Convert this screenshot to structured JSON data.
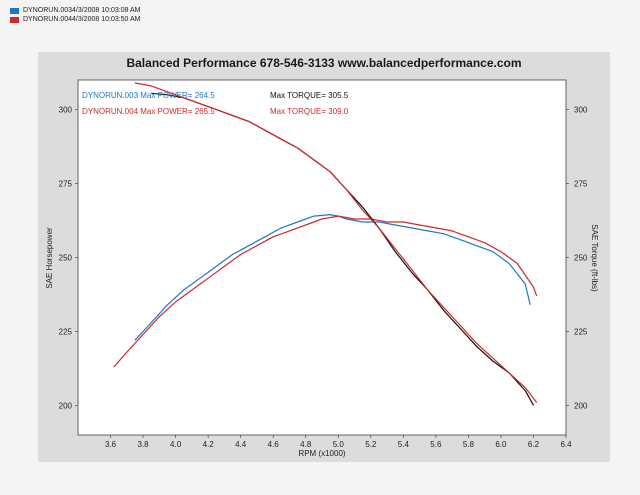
{
  "header_legend": [
    {
      "label": "DYNORUN.0034/3/2008 10:03:08 AM",
      "color": "#1f77c8"
    },
    {
      "label": "DYNORUN.0044/3/2008 10:03:50 AM",
      "color": "#d02a2a"
    }
  ],
  "chart_data": {
    "type": "line",
    "title": "Balanced Performance 678-546-3133 www.balancedperformance.com",
    "xlabel": "RPM (x1000)",
    "ylabel_left": "SAE Horsepower",
    "ylabel_right": "SAE Torque (ft-lbs)",
    "xlim": [
      3.4,
      6.4
    ],
    "ylim_left": [
      190,
      310
    ],
    "ylim_right": [
      190,
      310
    ],
    "x_ticks": [
      "3.6",
      "3.8",
      "4.0",
      "4.2",
      "4.4",
      "4.6",
      "4.8",
      "5.0",
      "5.2",
      "5.4",
      "5.6",
      "5.8",
      "6.0",
      "6.2",
      "6.4"
    ],
    "y_ticks_left": [
      "200",
      "225",
      "250",
      "275",
      "300"
    ],
    "y_ticks_right": [
      "200",
      "225",
      "250",
      "275",
      "300"
    ],
    "grid": false,
    "inner_legend": [
      {
        "text": "DYNORUN.003  Max POWER= 264.5",
        "color": "#1f77c8"
      },
      {
        "text": "Max TORQUE= 305.5",
        "color": "#111111"
      },
      {
        "text": "DYNORUN.004  Max POWER= 265.5",
        "color": "#d02a2a"
      },
      {
        "text": "Max TORQUE= 309.0",
        "color": "#d02a2a"
      }
    ],
    "series": [
      {
        "name": "DYNORUN.003 Power",
        "axis": "left",
        "color": "#1f77c8",
        "x": [
          3.75,
          3.85,
          3.95,
          4.05,
          4.15,
          4.25,
          4.35,
          4.45,
          4.55,
          4.65,
          4.75,
          4.85,
          4.95,
          5.0,
          5.05,
          5.15,
          5.25,
          5.35,
          5.45,
          5.55,
          5.65,
          5.75,
          5.85,
          5.95,
          6.05,
          6.15,
          6.18
        ],
        "y": [
          222,
          228,
          234,
          239,
          243,
          247,
          251,
          254,
          257,
          260,
          262,
          264,
          264.5,
          264,
          263,
          262,
          262,
          261,
          260,
          259,
          258,
          256,
          254,
          252,
          248,
          241,
          234
        ]
      },
      {
        "name": "DYNORUN.004 Power",
        "axis": "left",
        "color": "#d02a2a",
        "x": [
          3.62,
          3.7,
          3.8,
          3.9,
          4.0,
          4.1,
          4.2,
          4.3,
          4.4,
          4.5,
          4.6,
          4.7,
          4.8,
          4.9,
          5.0,
          5.1,
          5.2,
          5.3,
          5.4,
          5.5,
          5.6,
          5.7,
          5.8,
          5.9,
          6.0,
          6.1,
          6.2,
          6.22
        ],
        "y": [
          213,
          218,
          224,
          230,
          235,
          239,
          243,
          247,
          251,
          254,
          257,
          259,
          261,
          263,
          264,
          263,
          263,
          262,
          262,
          261,
          260,
          259,
          257,
          255,
          252,
          248,
          240,
          237
        ]
      },
      {
        "name": "DYNORUN.003 Torque",
        "axis": "right",
        "color": "#111111",
        "x": [
          3.85,
          3.95,
          4.05,
          4.15,
          4.25,
          4.35,
          4.45,
          4.55,
          4.65,
          4.75,
          4.85,
          4.95,
          5.05,
          5.15,
          5.25,
          5.35,
          5.45,
          5.55,
          5.65,
          5.75,
          5.85,
          5.95,
          6.05,
          6.15,
          6.2
        ],
        "y": [
          305.5,
          305,
          304,
          302,
          300,
          298,
          296,
          293,
          290,
          287,
          283,
          279,
          273,
          267,
          260,
          252,
          245,
          239,
          232,
          226,
          220,
          215,
          211,
          205,
          200
        ]
      },
      {
        "name": "DYNORUN.004 Torque",
        "axis": "right",
        "color": "#d02a2a",
        "x": [
          3.75,
          3.85,
          3.95,
          4.05,
          4.15,
          4.25,
          4.35,
          4.45,
          4.55,
          4.65,
          4.75,
          4.85,
          4.95,
          5.05,
          5.15,
          5.25,
          5.35,
          5.45,
          5.55,
          5.65,
          5.75,
          5.85,
          5.95,
          6.05,
          6.15,
          6.22
        ],
        "y": [
          309,
          308,
          306,
          304,
          302,
          300,
          298,
          296,
          293,
          290,
          287,
          283,
          279,
          273,
          266,
          260,
          253,
          246,
          239,
          233,
          227,
          221,
          216,
          211,
          206,
          201
        ]
      }
    ]
  }
}
